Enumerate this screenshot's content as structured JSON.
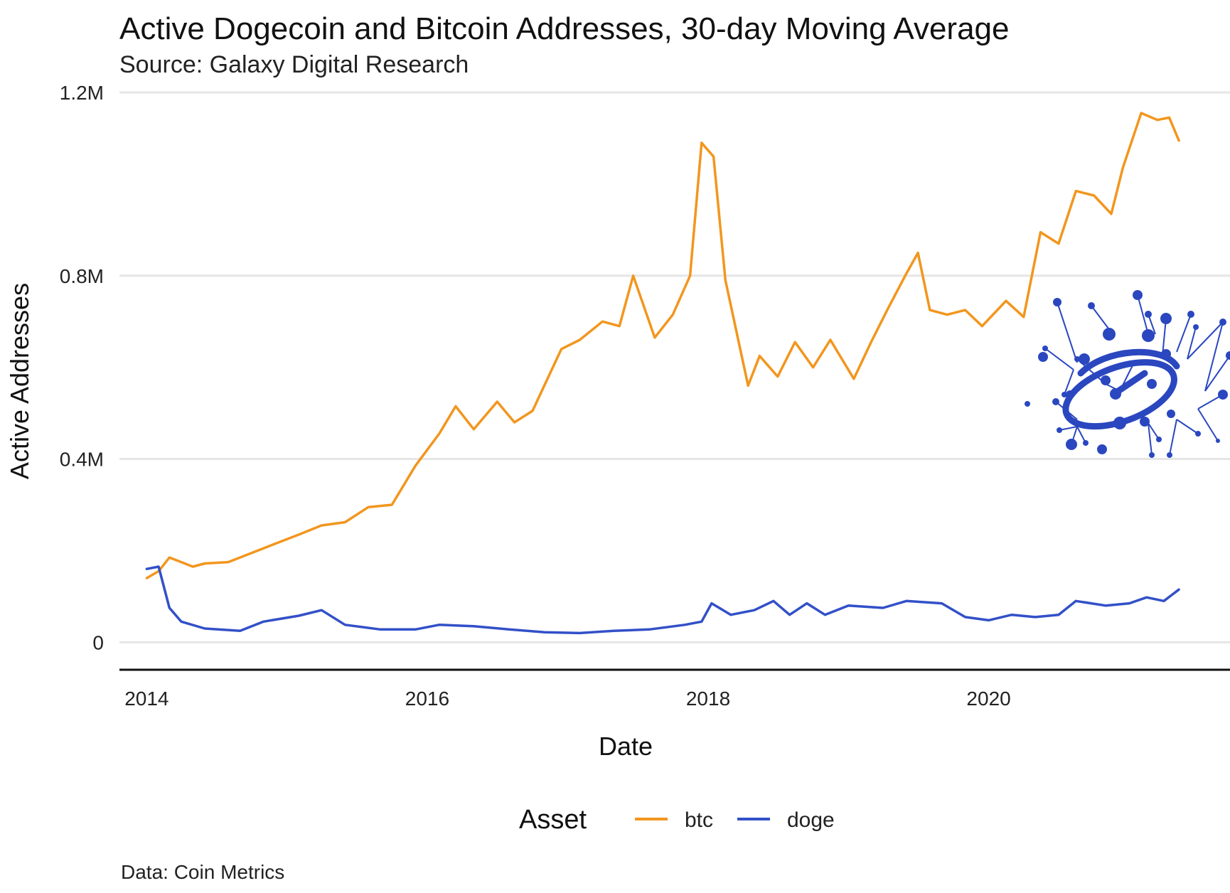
{
  "colors": {
    "btc": "#f2961e",
    "doge": "#3250c8",
    "grid": "#e6e6e6",
    "logo": "#2a47c0"
  },
  "logo": {
    "name": "galaxy-digital-logo"
  },
  "chart_data": {
    "type": "line",
    "title": "Active Dogecoin and Bitcoin Addresses, 30-day Moving Average",
    "subtitle": "Source: Galaxy Digital Research",
    "xlabel": "Date",
    "ylabel": "Active Addresses",
    "caption": "Data: Coin Metrics",
    "legend_title": "Asset",
    "legend_position": "bottom",
    "grid": true,
    "xlim": [
      "2013-10-22",
      "2021-09-20"
    ],
    "ylim": [
      -60000,
      1200000
    ],
    "x_ticks": [
      {
        "x": "2014-01-01",
        "label": "2014"
      },
      {
        "x": "2016-01-01",
        "label": "2016"
      },
      {
        "x": "2018-01-01",
        "label": "2018"
      },
      {
        "x": "2020-01-01",
        "label": "2020"
      }
    ],
    "y_ticks": [
      {
        "y": 0,
        "label": "0"
      },
      {
        "y": 400000,
        "label": "0.4M"
      },
      {
        "y": 800000,
        "label": "0.8M"
      },
      {
        "y": 1200000,
        "label": "1.2M"
      }
    ],
    "series": [
      {
        "name": "btc",
        "color": "#f2961e",
        "points": [
          [
            "2014-01-01",
            140000
          ],
          [
            "2014-02-01",
            155000
          ],
          [
            "2014-03-01",
            185000
          ],
          [
            "2014-04-01",
            175000
          ],
          [
            "2014-05-01",
            165000
          ],
          [
            "2014-06-01",
            172000
          ],
          [
            "2014-08-01",
            175000
          ],
          [
            "2014-10-01",
            195000
          ],
          [
            "2014-12-01",
            215000
          ],
          [
            "2015-02-01",
            235000
          ],
          [
            "2015-04-01",
            255000
          ],
          [
            "2015-06-01",
            262000
          ],
          [
            "2015-08-01",
            295000
          ],
          [
            "2015-10-01",
            300000
          ],
          [
            "2015-12-01",
            385000
          ],
          [
            "2016-02-01",
            455000
          ],
          [
            "2016-03-15",
            515000
          ],
          [
            "2016-05-01",
            465000
          ],
          [
            "2016-07-01",
            525000
          ],
          [
            "2016-08-15",
            480000
          ],
          [
            "2016-10-01",
            505000
          ],
          [
            "2016-12-15",
            640000
          ],
          [
            "2017-02-01",
            660000
          ],
          [
            "2017-04-01",
            700000
          ],
          [
            "2017-05-15",
            690000
          ],
          [
            "2017-06-20",
            800000
          ],
          [
            "2017-08-15",
            665000
          ],
          [
            "2017-10-01",
            715000
          ],
          [
            "2017-11-15",
            800000
          ],
          [
            "2017-12-15",
            1090000
          ],
          [
            "2018-01-15",
            1060000
          ],
          [
            "2018-02-15",
            790000
          ],
          [
            "2018-04-15",
            560000
          ],
          [
            "2018-05-15",
            625000
          ],
          [
            "2018-07-01",
            580000
          ],
          [
            "2018-08-15",
            655000
          ],
          [
            "2018-10-01",
            600000
          ],
          [
            "2018-11-15",
            660000
          ],
          [
            "2019-01-15",
            575000
          ],
          [
            "2019-03-01",
            655000
          ],
          [
            "2019-04-15",
            730000
          ],
          [
            "2019-06-01",
            805000
          ],
          [
            "2019-07-01",
            850000
          ],
          [
            "2019-08-01",
            725000
          ],
          [
            "2019-09-15",
            715000
          ],
          [
            "2019-11-01",
            725000
          ],
          [
            "2019-12-15",
            690000
          ],
          [
            "2020-02-15",
            745000
          ],
          [
            "2020-04-01",
            710000
          ],
          [
            "2020-05-15",
            895000
          ],
          [
            "2020-07-01",
            870000
          ],
          [
            "2020-08-15",
            985000
          ],
          [
            "2020-10-01",
            975000
          ],
          [
            "2020-11-15",
            935000
          ],
          [
            "2020-12-15",
            1035000
          ],
          [
            "2021-02-01",
            1155000
          ],
          [
            "2021-03-15",
            1140000
          ],
          [
            "2021-04-15",
            1145000
          ],
          [
            "2021-05-10",
            1095000
          ]
        ]
      },
      {
        "name": "doge",
        "color": "#3250c8",
        "points": [
          [
            "2014-01-01",
            160000
          ],
          [
            "2014-02-01",
            165000
          ],
          [
            "2014-03-01",
            75000
          ],
          [
            "2014-04-01",
            45000
          ],
          [
            "2014-06-01",
            30000
          ],
          [
            "2014-09-01",
            25000
          ],
          [
            "2014-11-01",
            45000
          ],
          [
            "2015-02-01",
            58000
          ],
          [
            "2015-04-01",
            70000
          ],
          [
            "2015-06-01",
            38000
          ],
          [
            "2015-09-01",
            28000
          ],
          [
            "2015-12-01",
            28000
          ],
          [
            "2016-02-01",
            38000
          ],
          [
            "2016-05-01",
            35000
          ],
          [
            "2016-08-01",
            28000
          ],
          [
            "2016-11-01",
            22000
          ],
          [
            "2017-02-01",
            20000
          ],
          [
            "2017-05-01",
            25000
          ],
          [
            "2017-08-01",
            28000
          ],
          [
            "2017-11-01",
            38000
          ],
          [
            "2017-12-15",
            45000
          ],
          [
            "2018-01-10",
            85000
          ],
          [
            "2018-03-01",
            60000
          ],
          [
            "2018-05-01",
            70000
          ],
          [
            "2018-06-20",
            90000
          ],
          [
            "2018-08-01",
            60000
          ],
          [
            "2018-09-15",
            85000
          ],
          [
            "2018-11-01",
            60000
          ],
          [
            "2019-01-01",
            80000
          ],
          [
            "2019-04-01",
            75000
          ],
          [
            "2019-06-01",
            90000
          ],
          [
            "2019-09-01",
            85000
          ],
          [
            "2019-11-01",
            55000
          ],
          [
            "2020-01-01",
            48000
          ],
          [
            "2020-03-01",
            60000
          ],
          [
            "2020-05-01",
            55000
          ],
          [
            "2020-07-01",
            60000
          ],
          [
            "2020-08-15",
            90000
          ],
          [
            "2020-11-01",
            80000
          ],
          [
            "2021-01-01",
            85000
          ],
          [
            "2021-02-15",
            98000
          ],
          [
            "2021-04-01",
            90000
          ],
          [
            "2021-05-10",
            115000
          ]
        ]
      }
    ]
  }
}
